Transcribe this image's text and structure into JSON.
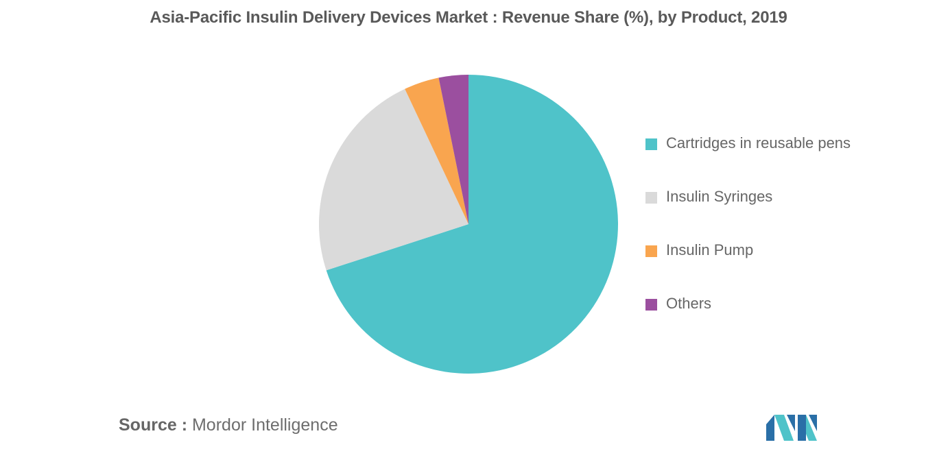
{
  "title": "Asia-Pacific Insulin Delivery Devices Market : Revenue Share (%), by Product, 2019",
  "source": {
    "key": "Source :",
    "value": "Mordor Intelligence"
  },
  "logo_text": "Mordor Intelligence",
  "chart_data": {
    "type": "pie",
    "title": "Asia-Pacific Insulin Delivery Devices Market : Revenue Share (%), by Product, 2019",
    "start_angle_deg": 0,
    "direction": "clockwise",
    "legend_position": "right",
    "slices": [
      {
        "label": "Cartridges in reusable pens",
        "value": 70.0,
        "color": "#4fc3c9"
      },
      {
        "label": "Insulin Syringes",
        "value": 23.0,
        "color": "#dadada"
      },
      {
        "label": "Insulin Pump",
        "value": 3.8,
        "color": "#f9a54f"
      },
      {
        "label": "Others",
        "value": 3.2,
        "color": "#9b4f9f"
      }
    ]
  }
}
